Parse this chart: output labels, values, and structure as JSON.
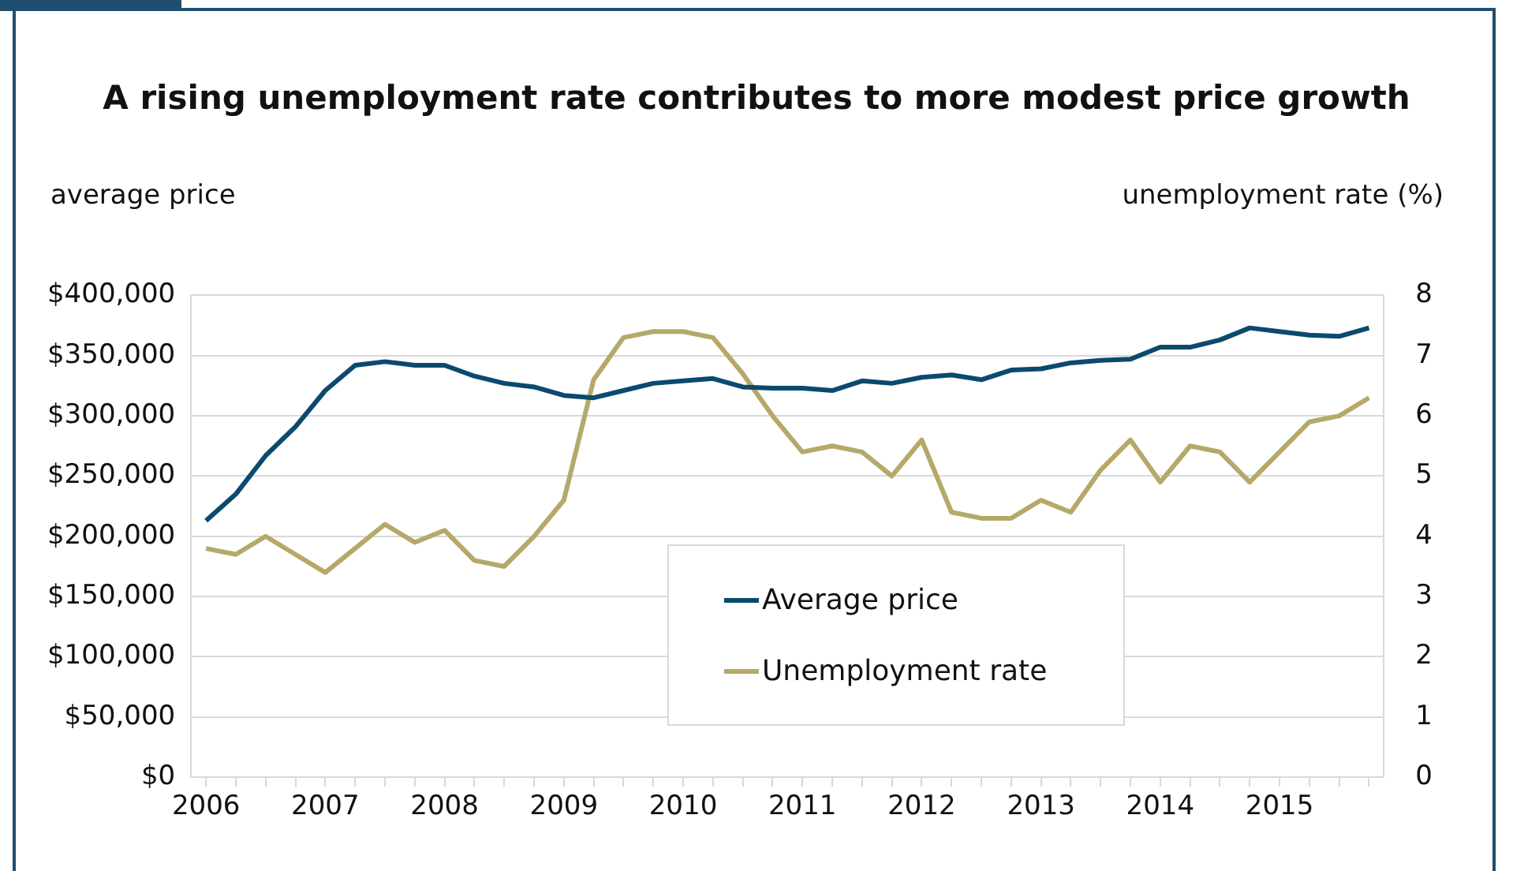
{
  "chart_data": {
    "type": "line",
    "title": "A rising unemployment rate contributes to more modest price growth",
    "ylabel": "average price",
    "y2label": "unemployment rate (%)",
    "categories": [
      "2006",
      null,
      null,
      null,
      "2007",
      null,
      null,
      null,
      "2008",
      null,
      null,
      null,
      "2009",
      null,
      null,
      null,
      "2010",
      null,
      null,
      null,
      "2011",
      null,
      null,
      null,
      "2012",
      null,
      null,
      null,
      "2013",
      null,
      null,
      null,
      "2014",
      null,
      null,
      null,
      "2015",
      null,
      null,
      null
    ],
    "series": [
      {
        "name": "Average price",
        "color": "#0b4a6e",
        "values": [
          213000,
          235000,
          267000,
          291000,
          321000,
          342000,
          345000,
          342000,
          342000,
          333000,
          327000,
          324000,
          317000,
          315000,
          321000,
          327000,
          329000,
          331000,
          324000,
          323000,
          323000,
          321000,
          329000,
          327000,
          332000,
          334000,
          330000,
          338000,
          339000,
          344000,
          346000,
          347000,
          357000,
          357000,
          363000,
          373000,
          370000,
          367000,
          366000,
          373000
        ]
      },
      {
        "name": "Unemployment rate",
        "color": "#b5a96a",
        "axis": "y2",
        "values": [
          3.8,
          3.7,
          4.0,
          3.7,
          3.4,
          3.8,
          4.2,
          3.9,
          4.1,
          3.6,
          3.5,
          4.0,
          4.6,
          6.6,
          7.3,
          7.4,
          7.4,
          7.3,
          6.7,
          6.0,
          5.4,
          5.5,
          5.4,
          5.0,
          5.6,
          4.4,
          4.3,
          4.3,
          4.6,
          4.4,
          5.1,
          5.6,
          4.9,
          5.5,
          5.4,
          4.9,
          5.4,
          5.9,
          6.0,
          6.3
        ]
      }
    ],
    "ylim": [
      0,
      400000
    ],
    "yticks": [
      {
        "value": 0,
        "label": "$0"
      },
      {
        "value": 50000,
        "label": "$50,000"
      },
      {
        "value": 100000,
        "label": "$100,000"
      },
      {
        "value": 150000,
        "label": "$150,000"
      },
      {
        "value": 200000,
        "label": "$200,000"
      },
      {
        "value": 250000,
        "label": "$250,000"
      },
      {
        "value": 300000,
        "label": "$300,000"
      },
      {
        "value": 350000,
        "label": "$350,000"
      },
      {
        "value": 400000,
        "label": "$400,000"
      }
    ],
    "y2lim": [
      0,
      8
    ],
    "y2ticks": [
      0,
      1,
      2,
      3,
      4,
      5,
      6,
      7,
      8
    ],
    "grid": "y",
    "legend": "bottom",
    "marker": "none",
    "line_style": "solid"
  }
}
